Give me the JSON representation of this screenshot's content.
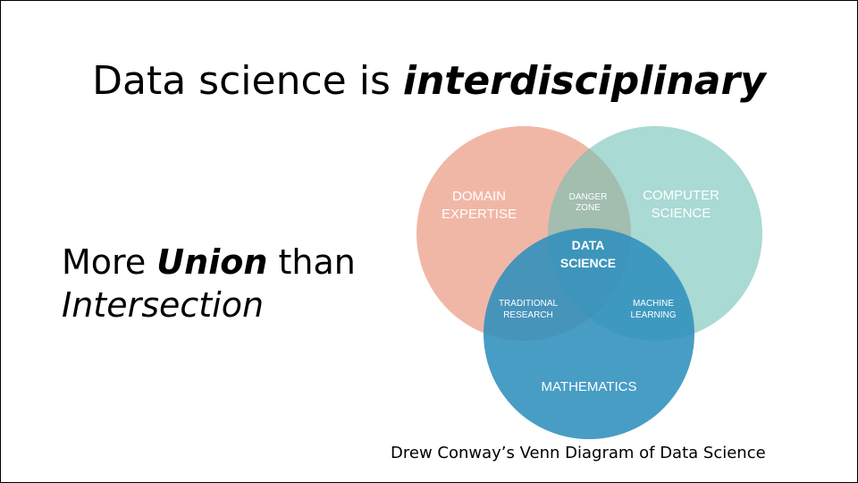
{
  "title": {
    "prefix": "Data science is ",
    "emphasis": "interdisciplinary"
  },
  "subtitle": {
    "line1_prefix": "More ",
    "line1_emphasis": "Union",
    "line1_suffix": " than",
    "line2": "Intersection"
  },
  "venn": {
    "domain": [
      "DOMAIN",
      "EXPERTISE"
    ],
    "computer": [
      "COMPUTER",
      "SCIENCE"
    ],
    "mathematics": "MATHEMATICS",
    "danger": [
      "DANGER",
      "ZONE"
    ],
    "traditional": [
      "TRADITIONAL",
      "RESEARCH"
    ],
    "machine": [
      "MACHINE",
      "LEARNING"
    ],
    "center": [
      "DATA",
      "SCIENCE"
    ],
    "colors": {
      "domain": "#e8876a",
      "computer": "#6fc2b6",
      "mathematics": "#2f8fbd"
    }
  },
  "caption": "Drew Conway’s Venn Diagram of Data Science"
}
